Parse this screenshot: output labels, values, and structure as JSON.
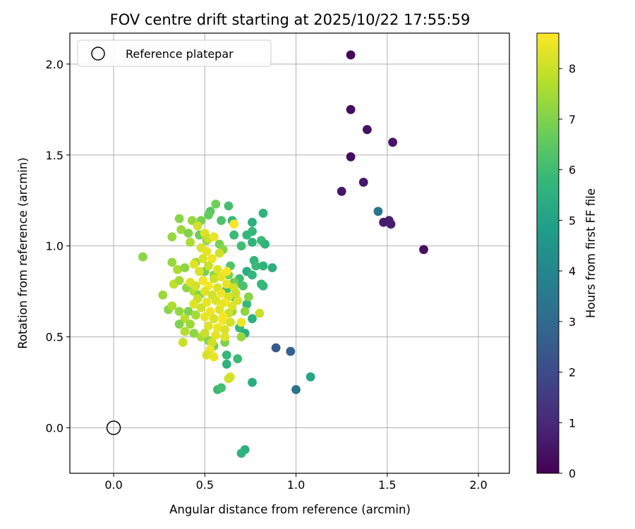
{
  "chart_data": {
    "type": "scatter",
    "title": "FOV centre drift starting at 2025/10/22 17:55:59",
    "xlabel": "Angular distance from reference (arcmin)",
    "ylabel": "Rotation from reference (arcmin)",
    "xlim": [
      -0.24,
      2.17
    ],
    "ylim": [
      -0.25,
      2.17
    ],
    "xticks": [
      "0.0",
      "0.5",
      "1.0",
      "1.5",
      "2.0"
    ],
    "yticks": [
      "0.0",
      "0.5",
      "1.0",
      "1.5",
      "2.0"
    ],
    "grid": true,
    "legend": {
      "location": "upper-left",
      "entries": [
        {
          "label": "Reference platepar",
          "marker": "open-circle"
        }
      ]
    },
    "reference_point": {
      "x": 0.0,
      "y": 0.0
    },
    "colorbar": {
      "label": "Hours from first FF file",
      "range": [
        0,
        8.7
      ],
      "ticks": [
        "0",
        "1",
        "2",
        "3",
        "4",
        "5",
        "6",
        "7",
        "8"
      ],
      "colormap": [
        "#440154",
        "#482878",
        "#3e4989",
        "#31688e",
        "#26828e",
        "#1f9e89",
        "#35b779",
        "#6ece58",
        "#b5de2b",
        "#fde725"
      ]
    },
    "points": [
      [
        1.3,
        2.05,
        0.2
      ],
      [
        1.3,
        1.75,
        0.3
      ],
      [
        1.39,
        1.64,
        0.4
      ],
      [
        1.53,
        1.57,
        0.5
      ],
      [
        1.3,
        1.49,
        0.3
      ],
      [
        1.37,
        1.35,
        0.6
      ],
      [
        1.25,
        1.3,
        0.5
      ],
      [
        1.45,
        1.19,
        3.4
      ],
      [
        1.51,
        1.14,
        0.8
      ],
      [
        1.48,
        1.13,
        0.6
      ],
      [
        1.52,
        1.12,
        0.7
      ],
      [
        1.7,
        0.98,
        0.4
      ],
      [
        0.89,
        0.44,
        2.5
      ],
      [
        0.97,
        0.42,
        2.7
      ],
      [
        1.0,
        0.21,
        3.3
      ],
      [
        1.08,
        0.28,
        5.2
      ],
      [
        0.76,
        0.25,
        5.4
      ],
      [
        0.72,
        -0.12,
        5.5
      ],
      [
        0.7,
        -0.14,
        5.6
      ],
      [
        0.82,
        1.18,
        5.6
      ],
      [
        0.76,
        1.13,
        5.5
      ],
      [
        0.76,
        1.08,
        5.8
      ],
      [
        0.73,
        1.06,
        5.8
      ],
      [
        0.81,
        1.03,
        5.9
      ],
      [
        0.76,
        1.02,
        5.7
      ],
      [
        0.83,
        1.01,
        5.6
      ],
      [
        0.7,
        1.0,
        6.0
      ],
      [
        0.65,
        1.14,
        5.8
      ],
      [
        0.63,
        1.22,
        6.1
      ],
      [
        0.66,
        1.06,
        5.9
      ],
      [
        0.77,
        0.92,
        5.7
      ],
      [
        0.78,
        0.89,
        5.9
      ],
      [
        0.82,
        0.89,
        5.6
      ],
      [
        0.87,
        0.88,
        5.5
      ],
      [
        0.73,
        0.86,
        5.4
      ],
      [
        0.76,
        0.84,
        5.7
      ],
      [
        0.82,
        0.78,
        5.7
      ],
      [
        0.81,
        0.79,
        5.8
      ],
      [
        0.73,
        0.68,
        5.8
      ],
      [
        0.76,
        0.6,
        5.5
      ],
      [
        0.69,
        0.55,
        5.8
      ],
      [
        0.72,
        0.52,
        5.4
      ],
      [
        0.68,
        0.38,
        5.9
      ],
      [
        0.62,
        0.35,
        5.6
      ],
      [
        0.62,
        0.4,
        5.8
      ],
      [
        0.57,
        0.21,
        5.9
      ],
      [
        0.59,
        0.22,
        6.1
      ],
      [
        0.69,
        0.82,
        6.0
      ],
      [
        0.71,
        0.78,
        6.2
      ],
      [
        0.67,
        0.79,
        6.1
      ],
      [
        0.66,
        0.72,
        6.0
      ],
      [
        0.64,
        0.89,
        6.3
      ],
      [
        0.62,
        0.76,
        6.0
      ],
      [
        0.56,
        1.23,
        6.8
      ],
      [
        0.53,
        1.19,
        6.4
      ],
      [
        0.52,
        1.17,
        6.6
      ],
      [
        0.59,
        1.14,
        6.2
      ],
      [
        0.48,
        1.14,
        6.9
      ],
      [
        0.43,
        1.14,
        7.3
      ],
      [
        0.36,
        1.15,
        7.1
      ],
      [
        0.37,
        1.09,
        7.4
      ],
      [
        0.41,
        1.07,
        7.0
      ],
      [
        0.32,
        1.05,
        7.3
      ],
      [
        0.47,
        1.06,
        6.8
      ],
      [
        0.51,
        1.03,
        7.2
      ],
      [
        0.58,
        1.01,
        6.9
      ],
      [
        0.6,
        0.98,
        7.1
      ],
      [
        0.42,
        1.02,
        7.6
      ],
      [
        0.16,
        0.94,
        7.2
      ],
      [
        0.32,
        0.91,
        7.3
      ],
      [
        0.35,
        0.87,
        7.6
      ],
      [
        0.39,
        0.88,
        7.2
      ],
      [
        0.45,
        0.91,
        7.4
      ],
      [
        0.5,
        0.86,
        6.9
      ],
      [
        0.55,
        0.84,
        7.1
      ],
      [
        0.63,
        0.84,
        6.9
      ],
      [
        0.66,
        0.8,
        6.8
      ],
      [
        0.33,
        0.79,
        7.9
      ],
      [
        0.36,
        0.81,
        7.5
      ],
      [
        0.4,
        0.77,
        7.2
      ],
      [
        0.44,
        0.75,
        7.7
      ],
      [
        0.47,
        0.73,
        7.0
      ],
      [
        0.27,
        0.73,
        7.4
      ],
      [
        0.3,
        0.65,
        7.1
      ],
      [
        0.32,
        0.67,
        7.6
      ],
      [
        0.36,
        0.64,
        7.3
      ],
      [
        0.41,
        0.64,
        7.0
      ],
      [
        0.45,
        0.62,
        7.5
      ],
      [
        0.39,
        0.6,
        7.8
      ],
      [
        0.36,
        0.57,
        7.0
      ],
      [
        0.42,
        0.57,
        7.4
      ],
      [
        0.39,
        0.53,
        7.7
      ],
      [
        0.44,
        0.52,
        7.2
      ],
      [
        0.48,
        0.5,
        7.6
      ],
      [
        0.52,
        0.48,
        7.1
      ],
      [
        0.55,
        0.45,
        6.9
      ],
      [
        0.61,
        0.47,
        7.0
      ],
      [
        0.7,
        0.5,
        7.3
      ],
      [
        0.72,
        0.64,
        7.2
      ],
      [
        0.74,
        0.72,
        7.1
      ],
      [
        0.8,
        0.63,
        8.0
      ],
      [
        0.65,
        0.64,
        7.4
      ],
      [
        0.46,
        1.11,
        8.1
      ],
      [
        0.5,
        1.07,
        8.3
      ],
      [
        0.52,
        1.04,
        8.0
      ],
      [
        0.55,
        1.05,
        8.4
      ],
      [
        0.66,
        1.12,
        8.6
      ],
      [
        0.48,
        0.99,
        8.2
      ],
      [
        0.51,
        0.97,
        8.4
      ],
      [
        0.58,
        0.96,
        8.1
      ],
      [
        0.49,
        0.93,
        8.2
      ],
      [
        0.54,
        0.93,
        8.5
      ],
      [
        0.44,
        0.9,
        8.3
      ],
      [
        0.52,
        0.89,
        8.0
      ],
      [
        0.47,
        0.86,
        8.2
      ],
      [
        0.57,
        0.87,
        8.3
      ],
      [
        0.62,
        0.86,
        8.6
      ],
      [
        0.55,
        0.82,
        8.0
      ],
      [
        0.59,
        0.83,
        8.4
      ],
      [
        0.49,
        0.81,
        8.5
      ],
      [
        0.42,
        0.8,
        8.3
      ],
      [
        0.45,
        0.78,
        8.1
      ],
      [
        0.52,
        0.78,
        8.6
      ],
      [
        0.57,
        0.77,
        8.2
      ],
      [
        0.62,
        0.79,
        8.4
      ],
      [
        0.66,
        0.77,
        8.1
      ],
      [
        0.5,
        0.75,
        8.3
      ],
      [
        0.54,
        0.73,
        8.1
      ],
      [
        0.59,
        0.74,
        8.5
      ],
      [
        0.63,
        0.72,
        8.2
      ],
      [
        0.46,
        0.71,
        8.0
      ],
      [
        0.51,
        0.69,
        8.4
      ],
      [
        0.56,
        0.7,
        8.2
      ],
      [
        0.61,
        0.69,
        8.6
      ],
      [
        0.65,
        0.67,
        8.3
      ],
      [
        0.48,
        0.66,
        8.1
      ],
      [
        0.53,
        0.64,
        8.5
      ],
      [
        0.58,
        0.65,
        8.3
      ],
      [
        0.63,
        0.63,
        8.0
      ],
      [
        0.5,
        0.61,
        8.4
      ],
      [
        0.55,
        0.6,
        8.2
      ],
      [
        0.6,
        0.59,
        8.6
      ],
      [
        0.64,
        0.58,
        8.1
      ],
      [
        0.52,
        0.56,
        8.3
      ],
      [
        0.57,
        0.55,
        8.5
      ],
      [
        0.61,
        0.54,
        8.2
      ],
      [
        0.5,
        0.52,
        8.0
      ],
      [
        0.56,
        0.51,
        8.4
      ],
      [
        0.61,
        0.5,
        8.3
      ],
      [
        0.54,
        0.47,
        8.1
      ],
      [
        0.53,
        0.43,
        8.5
      ],
      [
        0.51,
        0.4,
        8.2
      ],
      [
        0.55,
        0.39,
        8.4
      ],
      [
        0.38,
        0.47,
        8.0
      ],
      [
        0.7,
        0.58,
        8.5
      ],
      [
        0.64,
        0.28,
        8.3
      ],
      [
        0.63,
        0.27,
        8.1
      ],
      [
        0.68,
        0.7,
        8.2
      ],
      [
        0.6,
        0.61,
        8.6
      ],
      [
        0.59,
        0.68,
        8.4
      ],
      [
        0.67,
        0.74,
        8.0
      ],
      [
        0.44,
        0.68,
        8.3
      ]
    ]
  }
}
